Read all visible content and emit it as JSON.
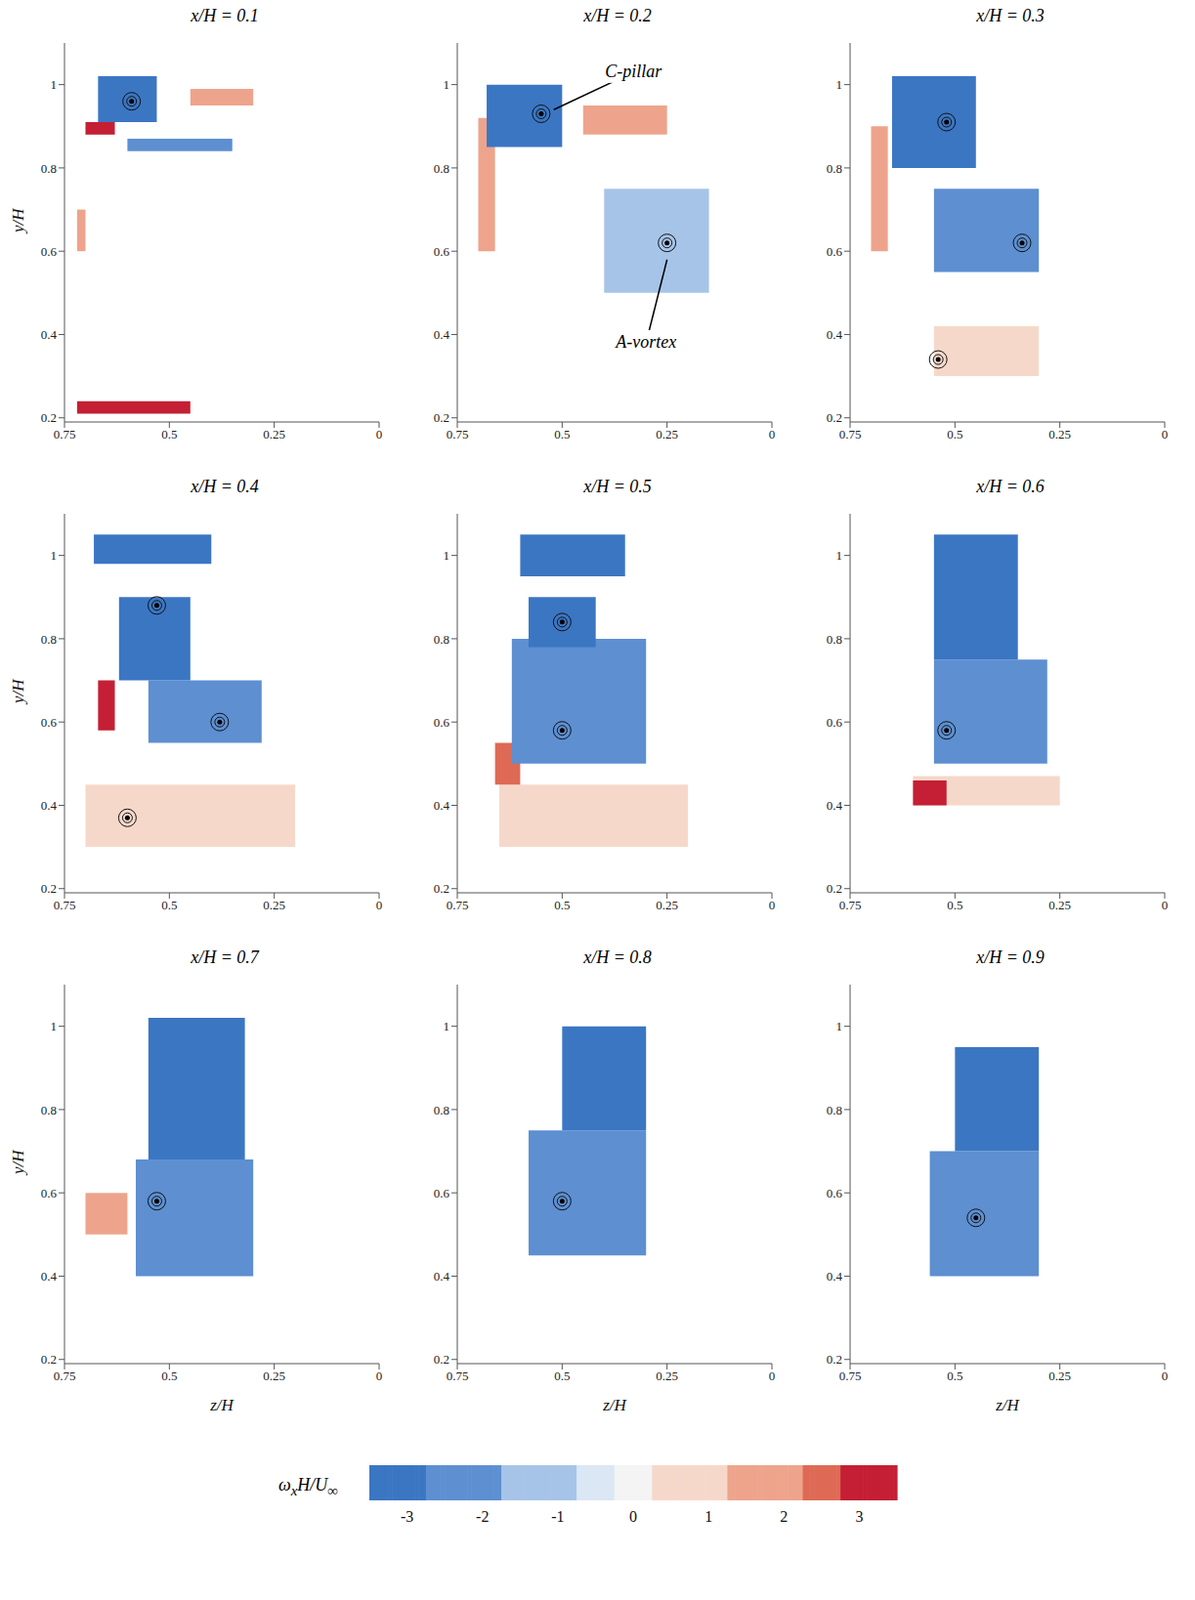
{
  "chart_data": [
    {
      "type": "contour",
      "title": "x/H = 0.1",
      "ylabel": "y/H",
      "xlim": [
        0.75,
        0
      ],
      "ylim": [
        0.19,
        1.1
      ],
      "xticks": [
        0.75,
        0.5,
        0.25,
        0
      ],
      "yticks": [
        0.2,
        0.4,
        0.6,
        0.8,
        1
      ],
      "regions": [
        {
          "z": [
            0.53,
            0.67
          ],
          "y": [
            0.91,
            1.02
          ],
          "value": -3
        },
        {
          "z": [
            0.63,
            0.7
          ],
          "y": [
            0.88,
            0.91
          ],
          "value": 3
        },
        {
          "z": [
            0.3,
            0.45
          ],
          "y": [
            0.95,
            0.99
          ],
          "value": 2
        },
        {
          "z": [
            0.35,
            0.6
          ],
          "y": [
            0.84,
            0.87
          ],
          "value": -2
        },
        {
          "z": [
            0.7,
            0.72
          ],
          "y": [
            0.6,
            0.7
          ],
          "value": 2
        },
        {
          "z": [
            0.45,
            0.72
          ],
          "y": [
            0.21,
            0.24
          ],
          "value": 3
        }
      ],
      "vortex_centers": [
        [
          0.59,
          0.96
        ]
      ]
    },
    {
      "type": "contour",
      "title": "x/H = 0.2",
      "xlim": [
        0.75,
        0
      ],
      "ylim": [
        0.19,
        1.1
      ],
      "xticks": [
        0.75,
        0.5,
        0.25,
        0
      ],
      "yticks": [
        0.2,
        0.4,
        0.6,
        0.8,
        1
      ],
      "regions": [
        {
          "z": [
            0.66,
            0.7
          ],
          "y": [
            0.6,
            0.92
          ],
          "value": 2
        },
        {
          "z": [
            0.5,
            0.68
          ],
          "y": [
            0.85,
            1.0
          ],
          "value": -3
        },
        {
          "z": [
            0.15,
            0.4
          ],
          "y": [
            0.5,
            0.75
          ],
          "value": -1
        },
        {
          "z": [
            0.25,
            0.45
          ],
          "y": [
            0.88,
            0.95
          ],
          "value": 1.5
        }
      ],
      "vortex_centers": [
        [
          0.55,
          0.93
        ],
        [
          0.25,
          0.62
        ]
      ],
      "annotations": [
        {
          "text": "C-pillar",
          "z": 0.33,
          "y": 1.03,
          "target": [
            0.52,
            0.94
          ]
        },
        {
          "text": "A-vortex",
          "z": 0.3,
          "y": 0.38,
          "target": [
            0.25,
            0.58
          ]
        }
      ]
    },
    {
      "type": "contour",
      "title": "x/H = 0.3",
      "xlim": [
        0.75,
        0
      ],
      "ylim": [
        0.19,
        1.1
      ],
      "xticks": [
        0.75,
        0.5,
        0.25,
        0
      ],
      "yticks": [
        0.2,
        0.4,
        0.6,
        0.8,
        1
      ],
      "regions": [
        {
          "z": [
            0.3,
            0.55
          ],
          "y": [
            0.3,
            0.42
          ],
          "value": 1
        },
        {
          "z": [
            0.66,
            0.7
          ],
          "y": [
            0.6,
            0.9
          ],
          "value": 2
        },
        {
          "z": [
            0.3,
            0.55
          ],
          "y": [
            0.55,
            0.75
          ],
          "value": -2
        },
        {
          "z": [
            0.45,
            0.65
          ],
          "y": [
            0.8,
            1.02
          ],
          "value": -3
        }
      ],
      "vortex_centers": [
        [
          0.52,
          0.91
        ],
        [
          0.34,
          0.62
        ],
        [
          0.54,
          0.34
        ]
      ]
    },
    {
      "type": "contour",
      "title": "x/H = 0.4",
      "ylabel": "y/H",
      "xlim": [
        0.75,
        0
      ],
      "ylim": [
        0.19,
        1.1
      ],
      "xticks": [
        0.75,
        0.5,
        0.25,
        0
      ],
      "yticks": [
        0.2,
        0.4,
        0.6,
        0.8,
        1
      ],
      "regions": [
        {
          "z": [
            0.2,
            0.7
          ],
          "y": [
            0.3,
            0.45
          ],
          "value": 1
        },
        {
          "z": [
            0.63,
            0.67
          ],
          "y": [
            0.58,
            0.7
          ],
          "value": 3
        },
        {
          "z": [
            0.28,
            0.55
          ],
          "y": [
            0.55,
            0.7
          ],
          "value": -2
        },
        {
          "z": [
            0.45,
            0.62
          ],
          "y": [
            0.7,
            0.9
          ],
          "value": -3
        },
        {
          "z": [
            0.4,
            0.68
          ],
          "y": [
            0.98,
            1.05
          ],
          "value": -3
        }
      ],
      "vortex_centers": [
        [
          0.53,
          0.88
        ],
        [
          0.38,
          0.6
        ],
        [
          0.6,
          0.37
        ]
      ]
    },
    {
      "type": "contour",
      "title": "x/H = 0.5",
      "xlim": [
        0.75,
        0
      ],
      "ylim": [
        0.19,
        1.1
      ],
      "xticks": [
        0.75,
        0.5,
        0.25,
        0
      ],
      "yticks": [
        0.2,
        0.4,
        0.6,
        0.8,
        1
      ],
      "regions": [
        {
          "z": [
            0.2,
            0.65
          ],
          "y": [
            0.3,
            0.45
          ],
          "value": 1
        },
        {
          "z": [
            0.6,
            0.66
          ],
          "y": [
            0.45,
            0.55
          ],
          "value": 2.5
        },
        {
          "z": [
            0.3,
            0.62
          ],
          "y": [
            0.5,
            0.8
          ],
          "value": -2
        },
        {
          "z": [
            0.42,
            0.58
          ],
          "y": [
            0.78,
            0.9
          ],
          "value": -3
        },
        {
          "z": [
            0.35,
            0.6
          ],
          "y": [
            0.95,
            1.05
          ],
          "value": -3
        }
      ],
      "vortex_centers": [
        [
          0.5,
          0.84
        ],
        [
          0.5,
          0.58
        ]
      ]
    },
    {
      "type": "contour",
      "title": "x/H = 0.6",
      "xlim": [
        0.75,
        0
      ],
      "ylim": [
        0.19,
        1.1
      ],
      "xticks": [
        0.75,
        0.5,
        0.25,
        0
      ],
      "yticks": [
        0.2,
        0.4,
        0.6,
        0.8,
        1
      ],
      "regions": [
        {
          "z": [
            0.25,
            0.6
          ],
          "y": [
            0.4,
            0.47
          ],
          "value": 1
        },
        {
          "z": [
            0.52,
            0.6
          ],
          "y": [
            0.4,
            0.46
          ],
          "value": 3
        },
        {
          "z": [
            0.28,
            0.55
          ],
          "y": [
            0.5,
            0.75
          ],
          "value": -2
        },
        {
          "z": [
            0.35,
            0.55
          ],
          "y": [
            0.75,
            1.05
          ],
          "value": -3
        }
      ],
      "vortex_centers": [
        [
          0.52,
          0.58
        ]
      ]
    },
    {
      "type": "contour",
      "title": "x/H = 0.7",
      "xlabel": "z/H",
      "ylabel": "y/H",
      "xlim": [
        0.75,
        0
      ],
      "ylim": [
        0.19,
        1.1
      ],
      "xticks": [
        0.75,
        0.5,
        0.25,
        0
      ],
      "yticks": [
        0.2,
        0.4,
        0.6,
        0.8,
        1
      ],
      "regions": [
        {
          "z": [
            0.6,
            0.7
          ],
          "y": [
            0.5,
            0.6
          ],
          "value": 1.5
        },
        {
          "z": [
            0.3,
            0.58
          ],
          "y": [
            0.4,
            0.68
          ],
          "value": -2
        },
        {
          "z": [
            0.32,
            0.55
          ],
          "y": [
            0.68,
            1.02
          ],
          "value": -3
        }
      ],
      "vortex_centers": [
        [
          0.53,
          0.58
        ]
      ]
    },
    {
      "type": "contour",
      "title": "x/H = 0.8",
      "xlabel": "z/H",
      "xlim": [
        0.75,
        0
      ],
      "ylim": [
        0.19,
        1.1
      ],
      "xticks": [
        0.75,
        0.5,
        0.25,
        0
      ],
      "yticks": [
        0.2,
        0.4,
        0.6,
        0.8,
        1
      ],
      "regions": [
        {
          "z": [
            0.3,
            0.58
          ],
          "y": [
            0.45,
            0.75
          ],
          "value": -2
        },
        {
          "z": [
            0.3,
            0.5
          ],
          "y": [
            0.75,
            1.0
          ],
          "value": -3
        }
      ],
      "vortex_centers": [
        [
          0.5,
          0.58
        ]
      ]
    },
    {
      "type": "contour",
      "title": "x/H = 0.9",
      "xlabel": "z/H",
      "xlim": [
        0.75,
        0
      ],
      "ylim": [
        0.19,
        1.1
      ],
      "xticks": [
        0.75,
        0.5,
        0.25,
        0
      ],
      "yticks": [
        0.2,
        0.4,
        0.6,
        0.8,
        1
      ],
      "regions": [
        {
          "z": [
            0.3,
            0.56
          ],
          "y": [
            0.4,
            0.7
          ],
          "value": -2.5
        },
        {
          "z": [
            0.3,
            0.5
          ],
          "y": [
            0.7,
            0.95
          ],
          "value": -3
        }
      ],
      "vortex_centers": [
        [
          0.45,
          0.54
        ]
      ]
    }
  ],
  "colorbar": {
    "label": "ωxH/U∞",
    "lim": [
      -3.5,
      3.5
    ],
    "ticks": [
      -3,
      -2,
      -1,
      0,
      1,
      2,
      3
    ]
  }
}
